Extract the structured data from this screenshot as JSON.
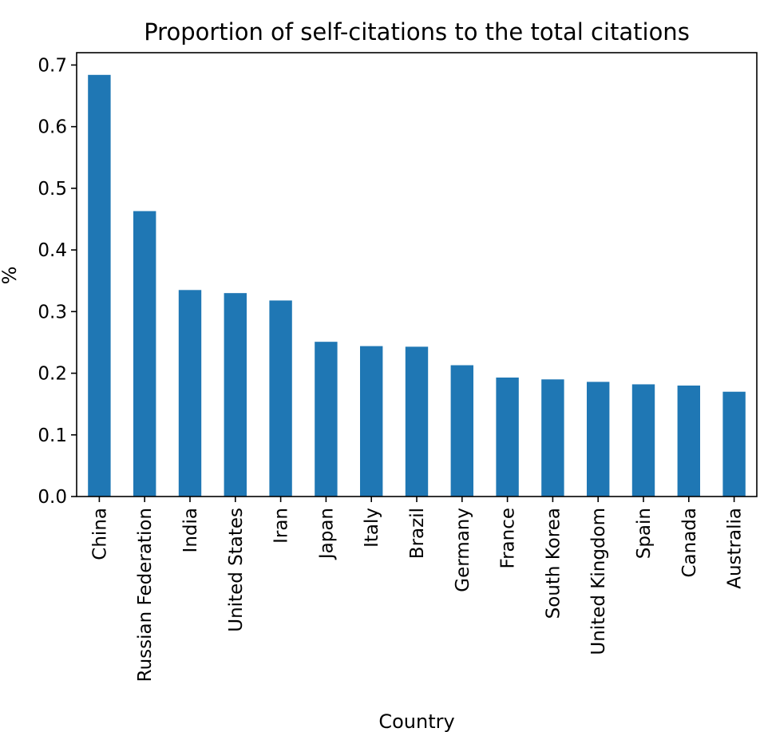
{
  "chart_data": {
    "type": "bar",
    "title": "Proportion of self-citations to the total citations",
    "xlabel": "Country",
    "ylabel": "%",
    "categories": [
      "China",
      "Russian Federation",
      "India",
      "United States",
      "Iran",
      "Japan",
      "Italy",
      "Brazil",
      "Germany",
      "France",
      "South Korea",
      "United Kingdom",
      "Spain",
      "Canada",
      "Australia"
    ],
    "values": [
      0.684,
      0.463,
      0.335,
      0.33,
      0.318,
      0.251,
      0.244,
      0.243,
      0.213,
      0.193,
      0.19,
      0.186,
      0.182,
      0.18,
      0.17
    ],
    "ylim": [
      0,
      0.72
    ],
    "yticks": [
      0.0,
      0.1,
      0.2,
      0.3,
      0.4,
      0.5,
      0.6,
      0.7
    ],
    "ytick_labels": [
      "0.0",
      "0.1",
      "0.2",
      "0.3",
      "0.4",
      "0.5",
      "0.6",
      "0.7"
    ],
    "bar_color": "#1f77b4",
    "grid": false,
    "legend": "none"
  }
}
